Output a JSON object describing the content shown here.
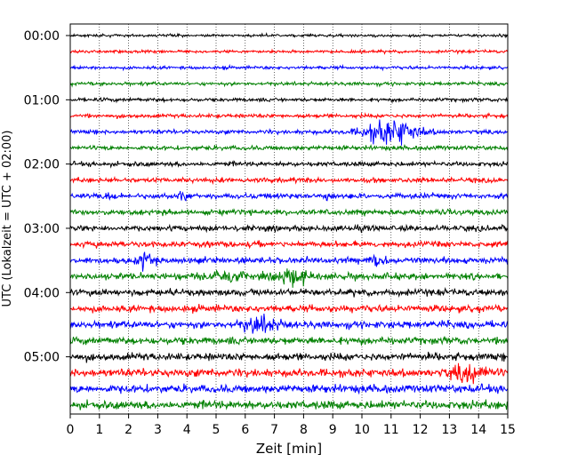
{
  "chart_data": {
    "type": "line",
    "title": "",
    "xlabel": "Zeit  [min]",
    "ylabel": "UTC (Lokalzeit = UTC + 02:00)",
    "xlim": [
      0,
      15
    ],
    "x_ticks": [
      "0",
      "1",
      "2",
      "3",
      "4",
      "5",
      "6",
      "7",
      "8",
      "9",
      "10",
      "11",
      "12",
      "13",
      "14",
      "15"
    ],
    "y_ticks": [
      "00:00",
      "01:00",
      "02:00",
      "03:00",
      "04:00",
      "05:00"
    ],
    "grid": "vertical dotted lines at each minute",
    "trace_interval_minutes": 15,
    "trace_count": 24,
    "trace_start_times": [
      "00:00",
      "00:15",
      "00:30",
      "00:45",
      "01:00",
      "01:15",
      "01:30",
      "01:45",
      "02:00",
      "02:15",
      "02:30",
      "02:45",
      "03:00",
      "03:15",
      "03:30",
      "03:45",
      "04:00",
      "04:15",
      "04:30",
      "04:45",
      "05:00",
      "05:15",
      "05:30",
      "05:45"
    ],
    "trace_color_cycle": [
      "#000000",
      "#ff0000",
      "#0000ff",
      "#008000"
    ],
    "events": [
      {
        "trace": "01:30",
        "x_min": 11.0,
        "relative_amplitude": 6,
        "spread_min": 0.9
      },
      {
        "trace": "02:30",
        "x_min": 1.4,
        "relative_amplitude": 2.5,
        "spread_min": 0.15
      },
      {
        "trace": "02:30",
        "x_min": 3.9,
        "relative_amplitude": 2.2,
        "spread_min": 0.15
      },
      {
        "trace": "02:30",
        "x_min": 8.8,
        "relative_amplitude": 2,
        "spread_min": 0.2
      },
      {
        "trace": "03:30",
        "x_min": 2.5,
        "relative_amplitude": 2,
        "spread_min": 0.3
      },
      {
        "trace": "03:30",
        "x_min": 10.5,
        "relative_amplitude": 2,
        "spread_min": 0.3
      },
      {
        "trace": "03:45",
        "x_min": 5.3,
        "relative_amplitude": 2,
        "spread_min": 0.5
      },
      {
        "trace": "03:45",
        "x_min": 7.6,
        "relative_amplitude": 2.5,
        "spread_min": 0.5
      },
      {
        "trace": "04:30",
        "x_min": 6.5,
        "relative_amplitude": 2,
        "spread_min": 0.6
      },
      {
        "trace": "05:15",
        "x_min": 13.7,
        "relative_amplitude": 2.2,
        "spread_min": 0.6
      }
    ]
  }
}
